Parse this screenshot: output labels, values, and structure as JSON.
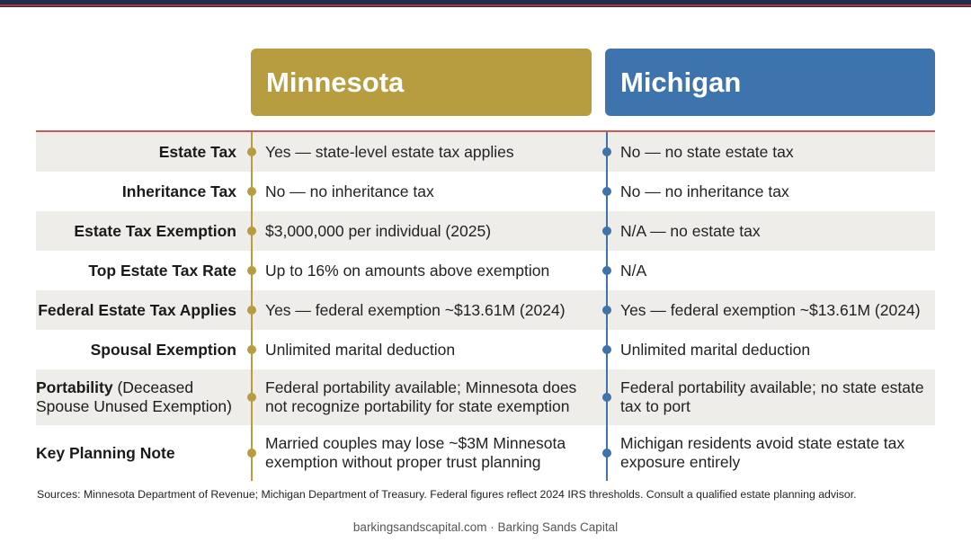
{
  "columns": {
    "minnesota": "Minnesota",
    "michigan": "Michigan"
  },
  "rows": [
    {
      "label": "Estate Tax",
      "mn": "Yes — state-level estate tax applies",
      "mi": "No — no state estate tax"
    },
    {
      "label": "Inheritance Tax",
      "mn": "No — no inheritance tax",
      "mi": "No — no inheritance tax"
    },
    {
      "label": "Estate Tax Exemption",
      "mn": "$3,000,000 per individual (2025)",
      "mi": "N/A — no estate tax"
    },
    {
      "label": "Top Estate Tax Rate",
      "mn": "Up to 16% on amounts above exemption",
      "mi": "N/A"
    },
    {
      "label": "Federal Estate Tax Applies",
      "mn": "Yes — federal exemption ~$13.61M (2024)",
      "mi": "Yes — federal exemption ~$13.61M (2024)"
    },
    {
      "label": "Spousal Exemption",
      "mn": "Unlimited marital deduction",
      "mi": "Unlimited marital deduction"
    },
    {
      "label": "Portability",
      "label_suffix": "(Deceased Spouse Unused Exemption)",
      "mn": "Federal portability available; Minnesota does not recognize portability for state exemption",
      "mi": "Federal portability available; no state estate tax to port"
    },
    {
      "label": "Key Planning Note",
      "mn": "Married couples may lose ~$3M Minnesota exemption without proper trust planning",
      "mi": "Michigan residents avoid state estate tax exposure entirely"
    }
  ],
  "sources": "Sources: Minnesota Department of Revenue; Michigan Department of Treasury. Federal figures reflect 2024 IRS thresholds. Consult a qualified estate planning advisor.",
  "footer": "barkingsandscapital.com · Barking Sands Capital",
  "colors": {
    "minnesota": "#b79c40",
    "michigan": "#3d74ad",
    "rule": "#d3555c",
    "stripe": "#efedea"
  }
}
